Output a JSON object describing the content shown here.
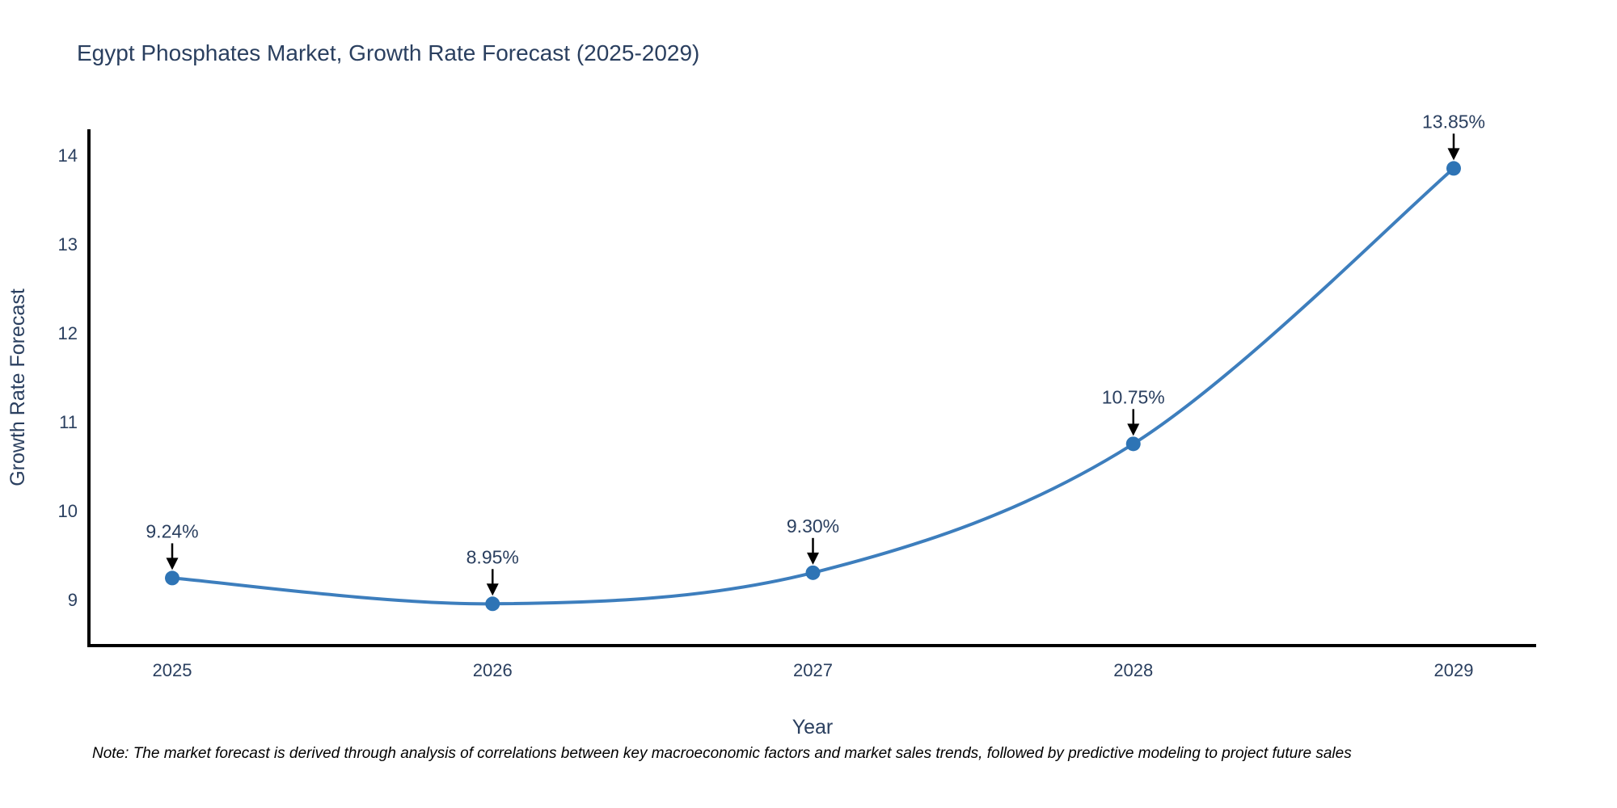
{
  "title": "Egypt Phosphates Market, Growth Rate Forecast (2025-2029)",
  "note": "Note: The market forecast is derived through analysis of correlations between key macroeconomic factors and market sales trends, followed by predictive modeling to project future sales",
  "chart_data": {
    "type": "line",
    "line_shape": "spline",
    "x": [
      2025,
      2026,
      2027,
      2028,
      2029
    ],
    "values": [
      9.24,
      8.95,
      9.3,
      10.75,
      13.85
    ],
    "point_labels": [
      "9.24%",
      "8.95%",
      "9.30%",
      "10.75%",
      "13.85%"
    ],
    "xlabel": "Year",
    "ylabel": "Growth Rate Forecast",
    "yticks": [
      9,
      10,
      11,
      12,
      13,
      14
    ],
    "ylim": [
      8.48,
      14.29
    ],
    "grid": false,
    "legend": "none",
    "colors": {
      "line": "#3d7ebd",
      "marker": "#2e74b5",
      "axis": "#000000",
      "tick_text": "#2a3f5f",
      "axis_title_text": "#2a3f5f",
      "annotation_text": "#2a3f5f",
      "annotation_arrow": "#000000",
      "background": "#ffffff"
    }
  }
}
